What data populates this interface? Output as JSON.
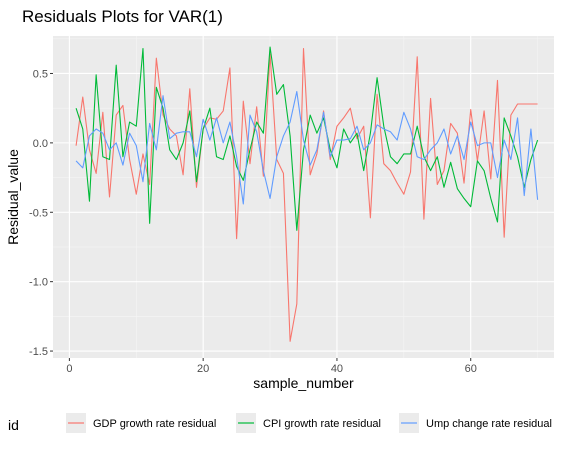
{
  "chart_data": {
    "type": "line",
    "title": "Residuals Plots for VAR(1)",
    "xlabel": "sample_number",
    "ylabel": "Residual_value",
    "xlim": [
      -2.45,
      72.45
    ],
    "ylim": [
      -1.55,
      0.77
    ],
    "xticks": [
      0,
      20,
      40,
      60
    ],
    "xtick_labels": [
      "0",
      "20",
      "40",
      "60"
    ],
    "yticks": [
      -1.5,
      -1.0,
      -0.5,
      0.0,
      0.5
    ],
    "ytick_labels": [
      "-1.5",
      "-1.0",
      "-0.5",
      "0.0",
      "0.5"
    ],
    "grid": true,
    "legend": {
      "title": "id",
      "position": "bottom"
    },
    "x": [
      1,
      2,
      3,
      4,
      5,
      6,
      7,
      8,
      9,
      10,
      11,
      12,
      13,
      14,
      15,
      16,
      17,
      18,
      19,
      20,
      21,
      22,
      23,
      24,
      25,
      26,
      27,
      28,
      29,
      30,
      31,
      32,
      33,
      34,
      35,
      36,
      37,
      38,
      39,
      40,
      41,
      42,
      43,
      44,
      45,
      46,
      47,
      48,
      49,
      50,
      51,
      52,
      53,
      54,
      55,
      56,
      57,
      58,
      59,
      60,
      61,
      62,
      63,
      64,
      65,
      66,
      67,
      68,
      69,
      70
    ],
    "series": [
      {
        "name": "GDP growth rate residual",
        "color": "#F8766D",
        "values": [
          -0.02,
          0.33,
          -0.05,
          -0.22,
          0.22,
          -0.39,
          0.2,
          0.27,
          -0.12,
          -0.37,
          -0.08,
          -0.3,
          0.61,
          0.2,
          0.1,
          0.05,
          -0.23,
          0.39,
          -0.32,
          0.1,
          0.18,
          0.17,
          0.23,
          0.54,
          -0.69,
          0.3,
          -0.15,
          0.26,
          -0.24,
          0.64,
          -0.12,
          -0.22,
          -1.43,
          -1.16,
          0.68,
          -0.23,
          -0.08,
          0.23,
          -0.12,
          0.12,
          0.18,
          0.25,
          0.03,
          0.12,
          -0.54,
          0.35,
          -0.15,
          -0.2,
          -0.29,
          -0.37,
          -0.21,
          0.62,
          -0.55,
          0.32,
          -0.3,
          -0.2,
          0.14,
          0.07,
          -0.29,
          0.24,
          -0.13,
          0.23,
          -0.26,
          0.45,
          -0.68,
          0.2,
          0.28,
          0.28,
          0.28,
          0.28
        ]
      },
      {
        "name": "CPI growth rate residual",
        "color": "#00BA38",
        "values": [
          0.25,
          0.1,
          -0.42,
          0.49,
          -0.1,
          -0.12,
          0.56,
          -0.1,
          0.15,
          0.12,
          0.68,
          -0.58,
          0.4,
          0.25,
          -0.05,
          -0.12,
          0.0,
          0.23,
          -0.28,
          0.1,
          0.25,
          -0.1,
          -0.12,
          0.05,
          -0.17,
          -0.27,
          -0.05,
          0.15,
          0.07,
          0.69,
          0.35,
          0.42,
          0.05,
          -0.63,
          -0.05,
          0.2,
          0.07,
          0.18,
          -0.05,
          -0.18,
          0.1,
          0.0,
          0.07,
          -0.2,
          0.07,
          0.47,
          0.12,
          -0.1,
          -0.15,
          -0.08,
          -0.08,
          0.12,
          -0.1,
          -0.2,
          -0.1,
          -0.32,
          -0.14,
          -0.33,
          -0.4,
          -0.46,
          -0.13,
          -0.2,
          -0.4,
          -0.57,
          0.18,
          0.05,
          -0.1,
          -0.32,
          -0.12,
          0.02
        ]
      },
      {
        "name": "Ump change rate residual",
        "color": "#619CFF",
        "values": [
          -0.13,
          -0.18,
          0.05,
          0.1,
          0.07,
          -0.05,
          0.0,
          -0.16,
          0.07,
          -0.02,
          -0.28,
          0.14,
          -0.05,
          0.34,
          0.03,
          0.07,
          0.08,
          0.08,
          -0.1,
          0.17,
          0.02,
          0.18,
          0.0,
          0.15,
          -0.1,
          -0.44,
          0.2,
          0.08,
          -0.2,
          -0.4,
          -0.1,
          0.05,
          0.15,
          0.37,
          0.02,
          -0.16,
          -0.05,
          0.22,
          -0.1,
          0.02,
          0.02,
          0.03,
          0.12,
          -0.05,
          0.0,
          0.13,
          0.1,
          0.08,
          0.02,
          0.22,
          0.1,
          -0.1,
          -0.12,
          -0.05,
          0.0,
          0.1,
          -0.08,
          0.05,
          -0.12,
          0.15,
          -0.02,
          0.0,
          0.0,
          -0.25,
          0.02,
          -0.12,
          0.18,
          -0.38,
          0.1,
          -0.41
        ]
      }
    ]
  }
}
